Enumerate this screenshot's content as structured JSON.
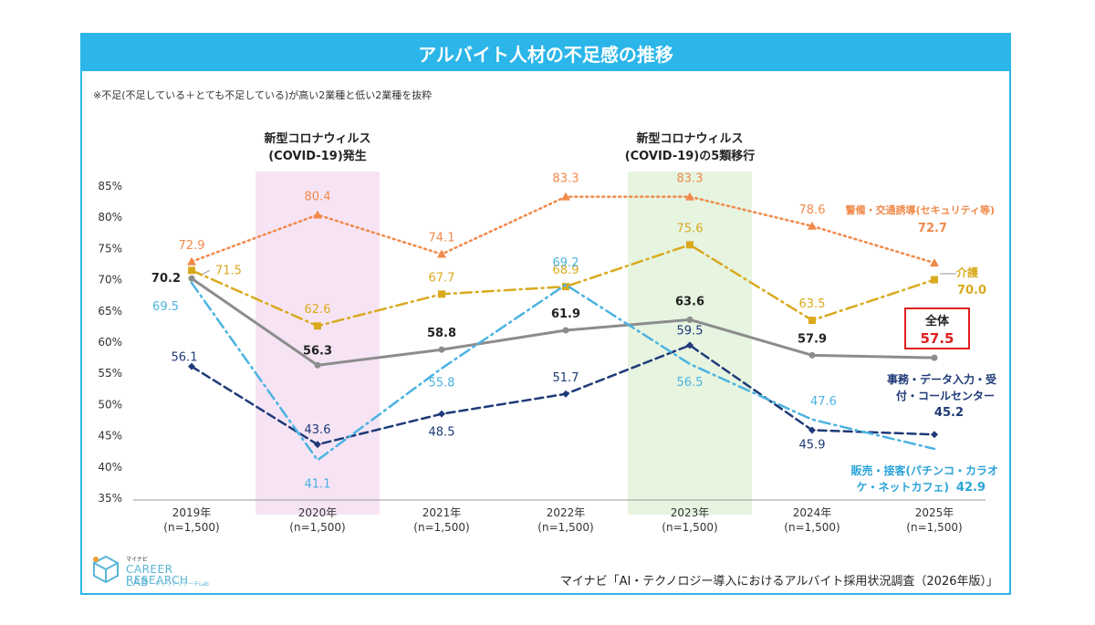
{
  "title": "アルバイト人材の不足感の推移",
  "note": "※不足(不足している＋とても不足している)が高い2業種と低い2業種を抜粋",
  "source": "マイナビ「AI・テクノロジー導入におけるアルバイト採用状況調査（2026年版）」",
  "logo": {
    "top": "マイナビ",
    "main": "CAREER RESEARCH",
    "lab": "LAB",
    "sub": "キャリアリサーチLab"
  },
  "chart_data": {
    "type": "line",
    "categories": [
      "2019年",
      "2020年",
      "2021年",
      "2022年",
      "2023年",
      "2024年",
      "2025年"
    ],
    "category_sub": "(n=1,500)",
    "ylim": [
      35,
      85
    ],
    "yticks": [
      "85%",
      "80%",
      "75%",
      "70%",
      "65%",
      "60%",
      "55%",
      "50%",
      "45%",
      "40%",
      "35%"
    ],
    "grid": false,
    "annotations": [
      {
        "category_index": 1,
        "line1": "新型コロナウィルス",
        "line2": "(COVID-19)発生",
        "color": "#f6e4f4"
      },
      {
        "category_index": 4,
        "line1": "新型コロナウィルス",
        "line2": "(COVID-19)の5類移行",
        "color": "#e6f4e0"
      }
    ],
    "series": [
      {
        "name": "警備・交通誘導(セキュリティ等)",
        "label_end": "72.7",
        "values": [
          72.9,
          80.4,
          74.1,
          83.3,
          83.3,
          78.6,
          72.7
        ],
        "color": "#f08a4b",
        "style": "dotted",
        "marker": "triangle"
      },
      {
        "name": "介護",
        "label_end": "70.0",
        "values": [
          71.5,
          62.6,
          67.7,
          68.9,
          75.6,
          63.5,
          70.0
        ],
        "color": "#d9aa1e",
        "style": "dashdot",
        "marker": "square"
      },
      {
        "name": "全体",
        "label_end": "57.5",
        "values": [
          70.2,
          56.3,
          58.8,
          61.9,
          63.6,
          57.9,
          57.5
        ],
        "color": "#8c8c8c",
        "style": "solid",
        "marker": "circle"
      },
      {
        "name": "事務・データ入力・受付・コールセンター",
        "label_end": "45.2",
        "values": [
          56.1,
          43.6,
          48.5,
          51.7,
          59.5,
          45.9,
          45.2
        ],
        "color": "#1f3a78",
        "style": "dashed",
        "marker": "diamond"
      },
      {
        "name": "販売・接客(パチンコ・カラオケ・ネットカフェ)",
        "label_end": "42.9",
        "values": [
          69.5,
          41.1,
          55.8,
          69.2,
          56.5,
          47.6,
          42.9
        ],
        "color": "#4bb3e0",
        "style": "dashdot",
        "marker": "none"
      }
    ],
    "legend_labels": {
      "security": "警備・交通誘導(セキュリティ等)",
      "care": "介護",
      "overall": "全体",
      "office_1": "事務・データ入力・受",
      "office_2": "付・コールセンター",
      "sales_1": "販売・接客(パチンコ・カラオ",
      "sales_2": "ケ・ネットカフェ)"
    }
  }
}
